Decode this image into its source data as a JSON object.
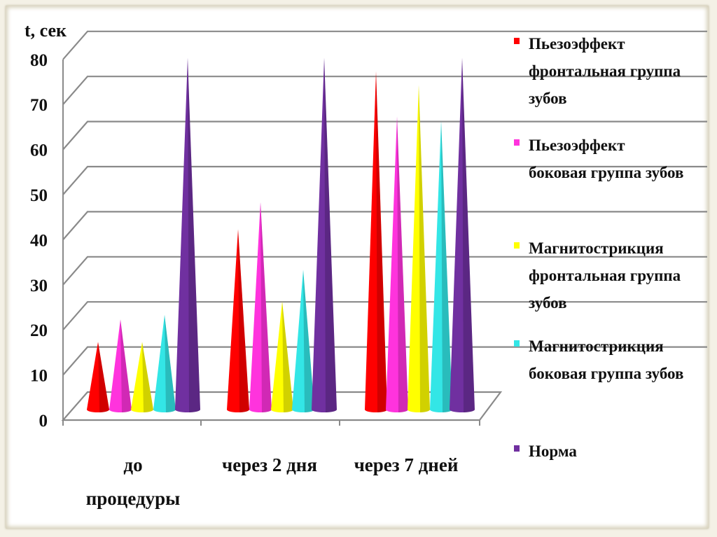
{
  "chart_data": {
    "type": "bar",
    "style": "3d-cone",
    "ylabel": "t, сек",
    "ylim": [
      0,
      80
    ],
    "yticks": [
      "0",
      "10",
      "20",
      "30",
      "40",
      "50",
      "60",
      "70",
      "80"
    ],
    "grid": true,
    "legend_position": "right",
    "categories": [
      [
        "до",
        "процедуры"
      ],
      [
        "через 2 дня"
      ],
      [
        "через 7 дней"
      ]
    ],
    "series": [
      {
        "name": [
          "Пьезоэффект",
          "фронтальная группа",
          "зубов"
        ],
        "color": "#ff0000",
        "values": [
          15,
          40,
          75
        ]
      },
      {
        "name": [
          "Пьезоэффект",
          "боковая группа зубов"
        ],
        "color": "#ff33dd",
        "values": [
          20,
          46,
          65
        ]
      },
      {
        "name": [
          "Магнитострикция",
          "фронтальная группа",
          "зубов"
        ],
        "color": "#ffff00",
        "values": [
          15,
          24,
          72
        ]
      },
      {
        "name": [
          "Магнитострикция",
          "боковая группа зубов"
        ],
        "color": "#33e6e6",
        "values": [
          21,
          31,
          64
        ]
      },
      {
        "name": [
          "Норма"
        ],
        "color": "#7030a0",
        "values": [
          78,
          78,
          78
        ]
      }
    ]
  }
}
